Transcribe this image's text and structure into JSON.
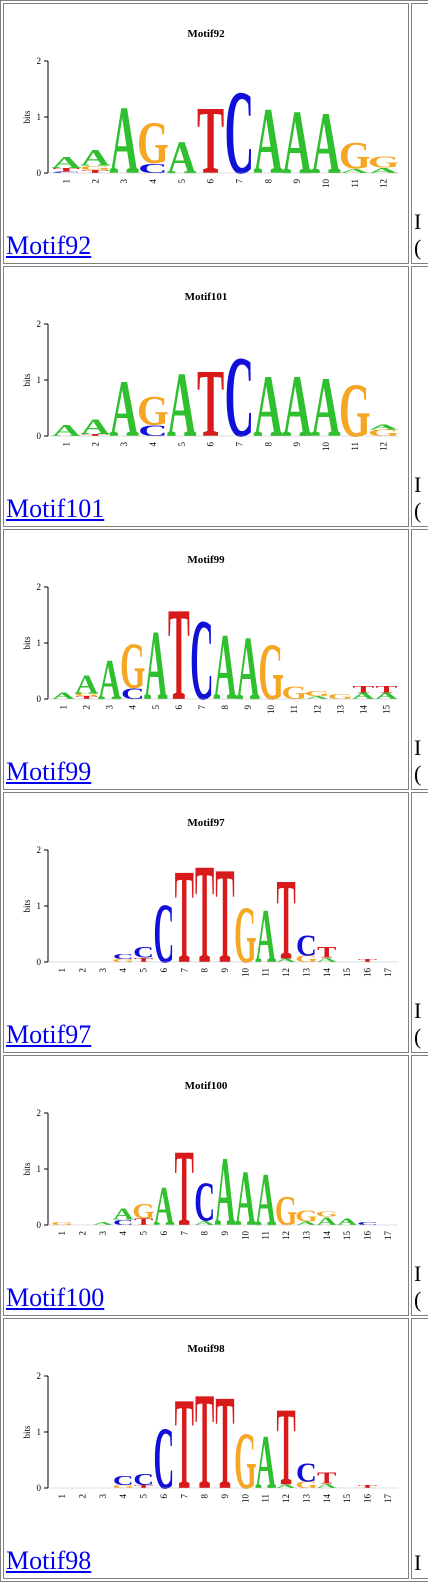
{
  "colors": {
    "A": "#2fbf2f",
    "C": "#1010d8",
    "G": "#f5a623",
    "T": "#d81a1a",
    "link": "#0000ee"
  },
  "axis": {
    "y_label": "bits",
    "ticks": [
      "2",
      "1",
      "0"
    ]
  },
  "motifs": [
    {
      "name": "Motif92",
      "link_text": "Motif92",
      "side_text": "I\n(",
      "positions": [
        "1",
        "2",
        "3",
        "4",
        "5",
        "6",
        "7",
        "8",
        "9",
        "10",
        "11",
        "12"
      ],
      "columns": [
        [
          [
            "C",
            0.03
          ],
          [
            "T",
            0.06
          ],
          [
            "A",
            0.22
          ]
        ],
        [
          [
            "T",
            0.05
          ],
          [
            "G",
            0.08
          ],
          [
            "A",
            0.3
          ]
        ],
        [
          [
            "A",
            1.25
          ]
        ],
        [
          [
            "C",
            0.18
          ],
          [
            "G",
            0.78
          ]
        ],
        [
          [
            "A",
            0.6
          ]
        ],
        [
          [
            "T",
            1.25
          ]
        ],
        [
          [
            "C",
            1.55
          ]
        ],
        [
          [
            "A",
            1.22
          ]
        ],
        [
          [
            "A",
            1.18
          ]
        ],
        [
          [
            "A",
            1.15
          ]
        ],
        [
          [
            "A",
            0.08
          ],
          [
            "G",
            0.5
          ]
        ],
        [
          [
            "A",
            0.1
          ],
          [
            "G",
            0.22
          ]
        ]
      ]
    },
    {
      "name": "Motif101",
      "link_text": "Motif101",
      "side_text": "I\n(",
      "positions": [
        "1",
        "2",
        "3",
        "4",
        "5",
        "6",
        "7",
        "8",
        "9",
        "10",
        "11",
        "12"
      ],
      "columns": [
        [
          [
            "A",
            0.22
          ]
        ],
        [
          [
            "T",
            0.04
          ],
          [
            "A",
            0.28
          ]
        ],
        [
          [
            "A",
            1.05
          ]
        ],
        [
          [
            "C",
            0.2
          ],
          [
            "G",
            0.55
          ]
        ],
        [
          [
            "A",
            1.2
          ]
        ],
        [
          [
            "T",
            1.25
          ]
        ],
        [
          [
            "C",
            1.5
          ]
        ],
        [
          [
            "A",
            1.15
          ]
        ],
        [
          [
            "A",
            1.15
          ]
        ],
        [
          [
            "A",
            1.1
          ]
        ],
        [
          [
            "G",
            1.0
          ]
        ],
        [
          [
            "G",
            0.12
          ],
          [
            "A",
            0.1
          ]
        ]
      ]
    },
    {
      "name": "Motif99",
      "link_text": "Motif99",
      "side_text": "I\n(",
      "positions": [
        "1",
        "2",
        "3",
        "4",
        "5",
        "6",
        "7",
        "8",
        "9",
        "10",
        "11",
        "12",
        "13",
        "14",
        "15"
      ],
      "columns": [
        [
          [
            "A",
            0.12
          ]
        ],
        [
          [
            "T",
            0.05
          ],
          [
            "G",
            0.05
          ],
          [
            "A",
            0.35
          ]
        ],
        [
          [
            "A",
            0.75
          ]
        ],
        [
          [
            "C",
            0.2
          ],
          [
            "G",
            0.85
          ]
        ],
        [
          [
            "A",
            1.3
          ]
        ],
        [
          [
            "T",
            1.72
          ]
        ],
        [
          [
            "C",
            1.5
          ]
        ],
        [
          [
            "A",
            1.22
          ]
        ],
        [
          [
            "A",
            1.18
          ]
        ],
        [
          [
            "G",
            1.05
          ]
        ],
        [
          [
            "G",
            0.25
          ]
        ],
        [
          [
            "A",
            0.05
          ],
          [
            "G",
            0.1
          ]
        ],
        [
          [
            "G",
            0.1
          ]
        ],
        [
          [
            "A",
            0.12
          ],
          [
            "T",
            0.12
          ]
        ],
        [
          [
            "A",
            0.12
          ],
          [
            "T",
            0.12
          ]
        ]
      ]
    },
    {
      "name": "Motif97",
      "link_text": "Motif97",
      "side_text": "I\n(",
      "positions": [
        "1",
        "2",
        "3",
        "4",
        "5",
        "6",
        "7",
        "8",
        "9",
        "10",
        "11",
        "12",
        "13",
        "14",
        "15",
        "16",
        "17"
      ],
      "columns": [
        [],
        [],
        [],
        [
          [
            "G",
            0.05
          ],
          [
            "C",
            0.1
          ]
        ],
        [
          [
            "T",
            0.08
          ],
          [
            "C",
            0.2
          ]
        ],
        [
          [
            "C",
            1.1
          ]
        ],
        [
          [
            "T",
            1.75
          ]
        ],
        [
          [
            "T",
            1.85
          ]
        ],
        [
          [
            "T",
            1.78
          ]
        ],
        [
          [
            "G",
            1.05
          ]
        ],
        [
          [
            "A",
            1.0
          ]
        ],
        [
          [
            "A",
            0.06
          ],
          [
            "T",
            1.5
          ]
        ],
        [
          [
            "G",
            0.12
          ],
          [
            "C",
            0.4
          ]
        ],
        [
          [
            "A",
            0.08
          ],
          [
            "T",
            0.2
          ]
        ],
        [],
        [
          [
            "T",
            0.05
          ]
        ],
        []
      ]
    },
    {
      "name": "Motif100",
      "link_text": "Motif100",
      "side_text": "I\n(",
      "positions": [
        "1",
        "2",
        "3",
        "4",
        "5",
        "6",
        "7",
        "8",
        "9",
        "10",
        "11",
        "12",
        "13",
        "14",
        "15",
        "16",
        "17"
      ],
      "columns": [
        [
          [
            "G",
            0.05
          ]
        ],
        [],
        [
          [
            "A",
            0.05
          ]
        ],
        [
          [
            "C",
            0.1
          ],
          [
            "A",
            0.22
          ]
        ],
        [
          [
            "T",
            0.12
          ],
          [
            "G",
            0.28
          ]
        ],
        [
          [
            "A",
            0.72
          ]
        ],
        [
          [
            "T",
            1.42
          ]
        ],
        [
          [
            "A",
            0.08
          ],
          [
            "C",
            0.72
          ]
        ],
        [
          [
            "A",
            1.28
          ]
        ],
        [
          [
            "A",
            1.02
          ]
        ],
        [
          [
            "A",
            0.98
          ]
        ],
        [
          [
            "G",
            0.55
          ]
        ],
        [
          [
            "A",
            0.06
          ],
          [
            "G",
            0.22
          ]
        ],
        [
          [
            "A",
            0.15
          ],
          [
            "G",
            0.1
          ]
        ],
        [
          [
            "A",
            0.12
          ]
        ],
        [
          [
            "C",
            0.05
          ]
        ],
        []
      ]
    },
    {
      "name": "Motif98",
      "link_text": "Motif98",
      "side_text": "I",
      "positions": [
        "1",
        "2",
        "3",
        "4",
        "5",
        "6",
        "7",
        "8",
        "9",
        "10",
        "11",
        "12",
        "13",
        "14",
        "15",
        "16",
        "17"
      ],
      "columns": [
        [],
        [],
        [],
        [
          [
            "G",
            0.05
          ],
          [
            "C",
            0.18
          ]
        ],
        [
          [
            "T",
            0.05
          ],
          [
            "C",
            0.22
          ]
        ],
        [
          [
            "C",
            1.15
          ]
        ],
        [
          [
            "T",
            1.7
          ]
        ],
        [
          [
            "T",
            1.8
          ]
        ],
        [
          [
            "T",
            1.75
          ]
        ],
        [
          [
            "G",
            1.05
          ]
        ],
        [
          [
            "A",
            1.0
          ]
        ],
        [
          [
            "A",
            0.06
          ],
          [
            "T",
            1.45
          ]
        ],
        [
          [
            "G",
            0.12
          ],
          [
            "C",
            0.35
          ]
        ],
        [
          [
            "A",
            0.08
          ],
          [
            "T",
            0.22
          ]
        ],
        [],
        [
          [
            "T",
            0.05
          ]
        ],
        []
      ]
    }
  ]
}
